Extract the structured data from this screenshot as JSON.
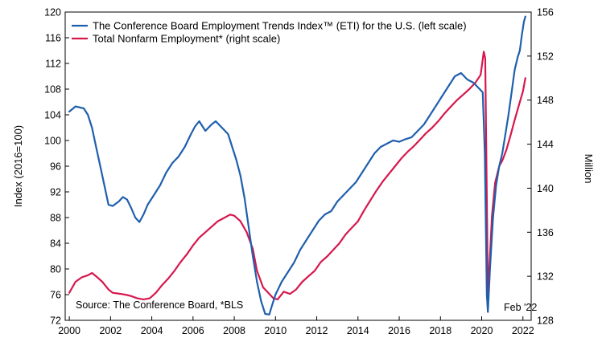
{
  "chart_data": {
    "type": "line",
    "xlim": [
      1999.8,
      2022.4
    ],
    "x_ticks": [
      2000,
      2002,
      2004,
      2006,
      2008,
      2010,
      2012,
      2014,
      2016,
      2018,
      2020,
      2022
    ],
    "left_axis": {
      "label": "Index (2016=100)",
      "range": [
        72,
        120
      ],
      "ticks": [
        72,
        76,
        80,
        84,
        88,
        92,
        96,
        100,
        104,
        108,
        112,
        116,
        120
      ]
    },
    "right_axis": {
      "label": "Million",
      "range": [
        128,
        156
      ],
      "ticks": [
        128,
        132,
        136,
        140,
        144,
        148,
        152,
        156
      ]
    },
    "series": [
      {
        "name": "The Conference Board Employment Trends Index™ (ETI) for the U.S. (left scale)",
        "axis": "left",
        "color": "#1f5fad",
        "points": [
          [
            2000.0,
            104.5
          ],
          [
            2000.3,
            105.3
          ],
          [
            2000.7,
            105.0
          ],
          [
            2000.9,
            104.0
          ],
          [
            2001.1,
            102.0
          ],
          [
            2001.3,
            99.0
          ],
          [
            2001.5,
            96.0
          ],
          [
            2001.7,
            93.0
          ],
          [
            2001.9,
            90.0
          ],
          [
            2002.1,
            89.8
          ],
          [
            2002.4,
            90.5
          ],
          [
            2002.6,
            91.2
          ],
          [
            2002.8,
            90.8
          ],
          [
            2003.0,
            89.5
          ],
          [
            2003.2,
            88.0
          ],
          [
            2003.4,
            87.3
          ],
          [
            2003.6,
            88.5
          ],
          [
            2003.8,
            90.0
          ],
          [
            2004.1,
            91.5
          ],
          [
            2004.4,
            93.0
          ],
          [
            2004.7,
            95.0
          ],
          [
            2005.0,
            96.5
          ],
          [
            2005.3,
            97.5
          ],
          [
            2005.6,
            99.0
          ],
          [
            2005.9,
            101.0
          ],
          [
            2006.1,
            102.2
          ],
          [
            2006.3,
            103.0
          ],
          [
            2006.6,
            101.5
          ],
          [
            2006.9,
            102.5
          ],
          [
            2007.1,
            103.0
          ],
          [
            2007.4,
            102.0
          ],
          [
            2007.7,
            101.0
          ],
          [
            2007.9,
            99.0
          ],
          [
            2008.1,
            97.0
          ],
          [
            2008.3,
            94.5
          ],
          [
            2008.5,
            91.0
          ],
          [
            2008.7,
            86.5
          ],
          [
            2008.9,
            82.0
          ],
          [
            2009.1,
            78.0
          ],
          [
            2009.3,
            75.0
          ],
          [
            2009.5,
            73.0
          ],
          [
            2009.7,
            72.9
          ],
          [
            2009.8,
            74.0
          ],
          [
            2010.0,
            76.0
          ],
          [
            2010.3,
            78.0
          ],
          [
            2010.6,
            79.5
          ],
          [
            2010.9,
            81.0
          ],
          [
            2011.2,
            83.0
          ],
          [
            2011.5,
            84.5
          ],
          [
            2011.8,
            86.0
          ],
          [
            2012.1,
            87.5
          ],
          [
            2012.4,
            88.5
          ],
          [
            2012.7,
            89.0
          ],
          [
            2013.0,
            90.5
          ],
          [
            2013.3,
            91.5
          ],
          [
            2013.6,
            92.5
          ],
          [
            2013.9,
            93.5
          ],
          [
            2014.2,
            95.0
          ],
          [
            2014.5,
            96.5
          ],
          [
            2014.8,
            98.0
          ],
          [
            2015.1,
            99.0
          ],
          [
            2015.4,
            99.5
          ],
          [
            2015.7,
            100.0
          ],
          [
            2016.0,
            99.8
          ],
          [
            2016.3,
            100.2
          ],
          [
            2016.6,
            100.5
          ],
          [
            2016.9,
            101.5
          ],
          [
            2017.2,
            102.5
          ],
          [
            2017.5,
            104.0
          ],
          [
            2017.8,
            105.5
          ],
          [
            2018.1,
            107.0
          ],
          [
            2018.4,
            108.5
          ],
          [
            2018.7,
            110.0
          ],
          [
            2019.0,
            110.5
          ],
          [
            2019.3,
            109.5
          ],
          [
            2019.6,
            109.0
          ],
          [
            2019.9,
            108.0
          ],
          [
            2020.05,
            107.5
          ],
          [
            2020.15,
            98.0
          ],
          [
            2020.25,
            76.0
          ],
          [
            2020.3,
            73.3
          ],
          [
            2020.4,
            80.0
          ],
          [
            2020.55,
            88.0
          ],
          [
            2020.7,
            93.0
          ],
          [
            2020.85,
            96.0
          ],
          [
            2021.0,
            98.0
          ],
          [
            2021.15,
            101.0
          ],
          [
            2021.3,
            104.0
          ],
          [
            2021.45,
            107.5
          ],
          [
            2021.6,
            111.0
          ],
          [
            2021.75,
            113.0
          ],
          [
            2021.85,
            114.0
          ],
          [
            2021.95,
            116.5
          ],
          [
            2022.05,
            118.5
          ],
          [
            2022.12,
            119.3
          ]
        ]
      },
      {
        "name": "Total Nonfarm Employment* (right scale)",
        "axis": "right",
        "color": "#d6174d",
        "points": [
          [
            2000.0,
            130.5
          ],
          [
            2000.3,
            131.5
          ],
          [
            2000.6,
            131.9
          ],
          [
            2000.9,
            132.1
          ],
          [
            2001.1,
            132.3
          ],
          [
            2001.3,
            132.0
          ],
          [
            2001.6,
            131.5
          ],
          [
            2001.9,
            130.8
          ],
          [
            2002.1,
            130.5
          ],
          [
            2002.5,
            130.4
          ],
          [
            2002.8,
            130.3
          ],
          [
            2003.0,
            130.2
          ],
          [
            2003.3,
            130.0
          ],
          [
            2003.6,
            129.9
          ],
          [
            2003.9,
            130.0
          ],
          [
            2004.2,
            130.5
          ],
          [
            2004.5,
            131.2
          ],
          [
            2004.8,
            131.8
          ],
          [
            2005.1,
            132.5
          ],
          [
            2005.4,
            133.3
          ],
          [
            2005.7,
            134.0
          ],
          [
            2006.0,
            134.8
          ],
          [
            2006.3,
            135.5
          ],
          [
            2006.6,
            136.0
          ],
          [
            2006.9,
            136.5
          ],
          [
            2007.2,
            137.0
          ],
          [
            2007.5,
            137.3
          ],
          [
            2007.8,
            137.6
          ],
          [
            2008.0,
            137.5
          ],
          [
            2008.3,
            137.0
          ],
          [
            2008.6,
            136.0
          ],
          [
            2008.9,
            134.5
          ],
          [
            2009.1,
            132.5
          ],
          [
            2009.4,
            131.0
          ],
          [
            2009.7,
            130.4
          ],
          [
            2009.9,
            130.0
          ],
          [
            2010.1,
            129.9
          ],
          [
            2010.4,
            130.6
          ],
          [
            2010.7,
            130.4
          ],
          [
            2011.0,
            130.8
          ],
          [
            2011.3,
            131.5
          ],
          [
            2011.6,
            132.0
          ],
          [
            2011.9,
            132.5
          ],
          [
            2012.2,
            133.3
          ],
          [
            2012.5,
            133.8
          ],
          [
            2012.8,
            134.4
          ],
          [
            2013.1,
            135.0
          ],
          [
            2013.4,
            135.8
          ],
          [
            2013.7,
            136.4
          ],
          [
            2014.0,
            137.0
          ],
          [
            2014.3,
            138.0
          ],
          [
            2014.6,
            138.9
          ],
          [
            2014.9,
            139.8
          ],
          [
            2015.2,
            140.6
          ],
          [
            2015.5,
            141.3
          ],
          [
            2015.8,
            142.0
          ],
          [
            2016.1,
            142.7
          ],
          [
            2016.4,
            143.3
          ],
          [
            2016.7,
            143.8
          ],
          [
            2017.0,
            144.4
          ],
          [
            2017.3,
            145.0
          ],
          [
            2017.6,
            145.5
          ],
          [
            2017.9,
            146.1
          ],
          [
            2018.2,
            146.8
          ],
          [
            2018.5,
            147.4
          ],
          [
            2018.8,
            148.0
          ],
          [
            2019.1,
            148.5
          ],
          [
            2019.4,
            149.0
          ],
          [
            2019.7,
            149.6
          ],
          [
            2019.95,
            150.3
          ],
          [
            2020.1,
            152.4
          ],
          [
            2020.17,
            151.8
          ],
          [
            2020.25,
            139.0
          ],
          [
            2020.3,
            130.4
          ],
          [
            2020.38,
            133.0
          ],
          [
            2020.5,
            137.5
          ],
          [
            2020.65,
            140.5
          ],
          [
            2020.85,
            142.0
          ],
          [
            2021.0,
            142.5
          ],
          [
            2021.2,
            143.5
          ],
          [
            2021.4,
            144.8
          ],
          [
            2021.6,
            146.2
          ],
          [
            2021.8,
            147.5
          ],
          [
            2022.0,
            148.8
          ],
          [
            2022.12,
            150.0
          ]
        ]
      }
    ],
    "legend_position": "top-left",
    "grid": false
  },
  "annotations": {
    "source": "Source: The Conference Board, *BLS",
    "date": "Feb '22"
  }
}
